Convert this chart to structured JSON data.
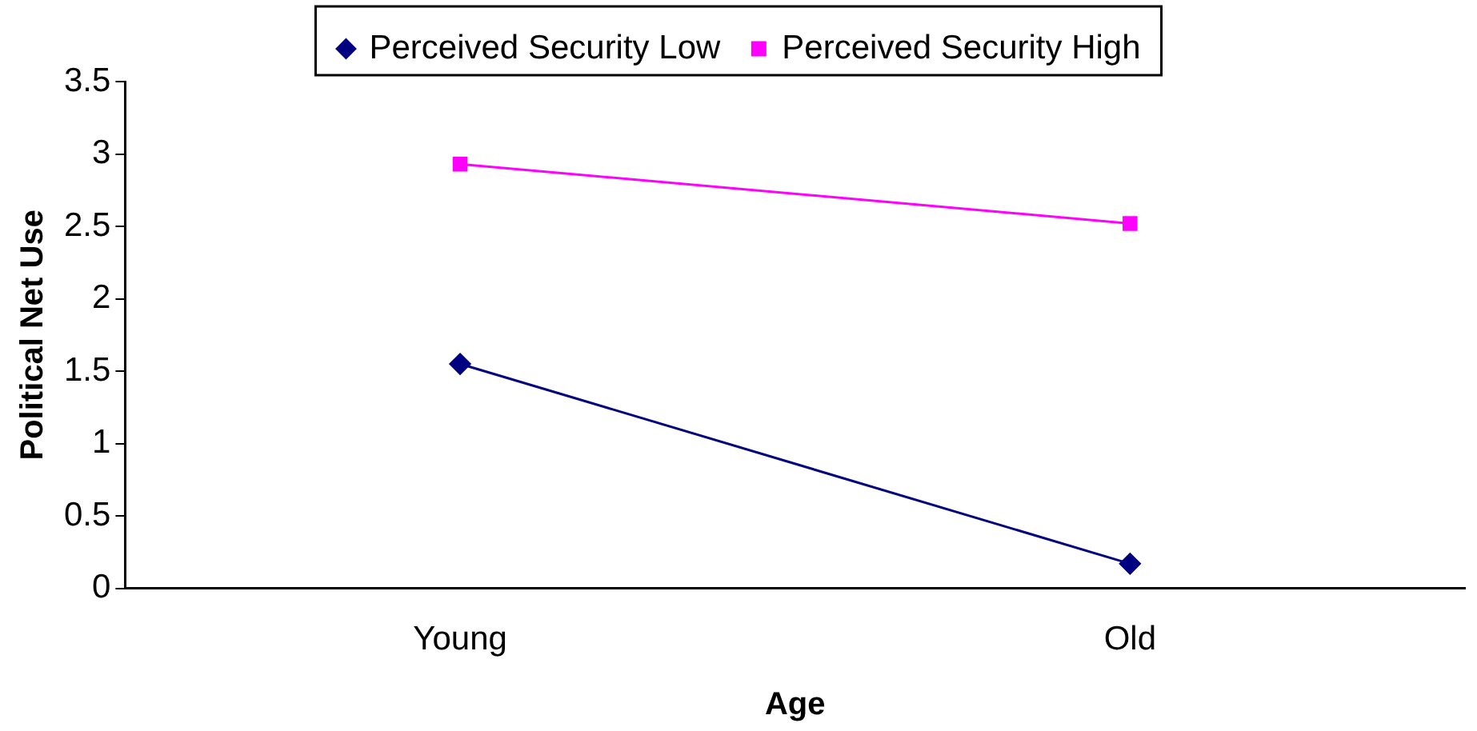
{
  "chart_data": {
    "type": "line",
    "xlabel": "Age",
    "ylabel": "Political Net Use",
    "categories": [
      "Young",
      "Old"
    ],
    "series": [
      {
        "name": "Perceived Security Low",
        "color": "#000080",
        "marker": "diamond",
        "values": [
          1.55,
          0.17
        ]
      },
      {
        "name": "Perceived Security High",
        "color": "#ff00ff",
        "marker": "square",
        "values": [
          2.93,
          2.52
        ]
      }
    ],
    "ylim": [
      0,
      3.5
    ],
    "yticks": [
      0,
      0.5,
      1,
      1.5,
      2,
      2.5,
      3,
      3.5
    ],
    "grid": false,
    "legend": "top"
  }
}
